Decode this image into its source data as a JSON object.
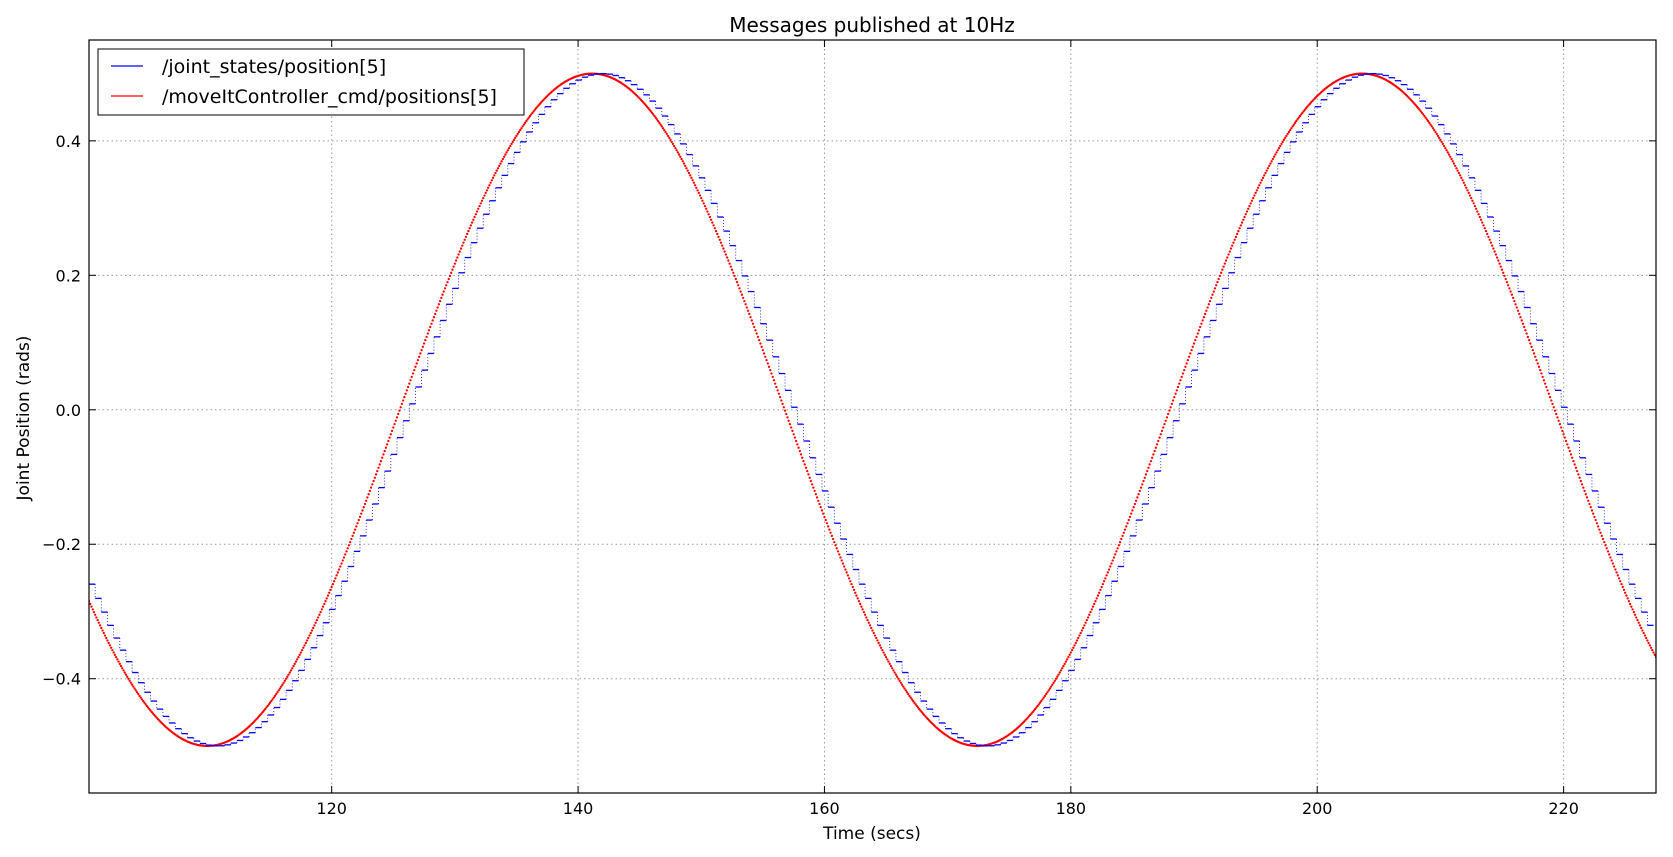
{
  "chart_data": {
    "type": "line",
    "title": "Messages published at 10Hz",
    "xlabel": "Time (secs)",
    "ylabel": "Joint Position (rads)",
    "xlim": [
      100.3,
      227.5
    ],
    "ylim": [
      -0.57,
      0.55
    ],
    "xticks": [
      120,
      140,
      160,
      180,
      200,
      220
    ],
    "xtick_labels": [
      "120",
      "140",
      "160",
      "180",
      "200",
      "220"
    ],
    "yticks": [
      -0.4,
      -0.2,
      0.0,
      0.2,
      0.4
    ],
    "ytick_labels": [
      "−0.4",
      "−0.2",
      "0.0",
      "0.2",
      "0.4"
    ],
    "grid": true,
    "legend_position": "top-left",
    "series": [
      {
        "name": "/joint_states/position[5]",
        "color": "#0000ff",
        "style": "step",
        "t_start": 100.3,
        "t_end": 227.5,
        "sample_interval": 0.5,
        "amplitude": 0.5,
        "period": 62.5,
        "first_min_at": 109.9,
        "lag": 0.6
      },
      {
        "name": "/moveItController_cmd/positions[5]",
        "color": "#ff0000",
        "style": "dotted",
        "t_start": 100.3,
        "t_end": 227.5,
        "sample_interval": 0.1,
        "amplitude": 0.5,
        "period": 62.5,
        "first_min_at": 109.9,
        "lag": 0
      }
    ]
  }
}
